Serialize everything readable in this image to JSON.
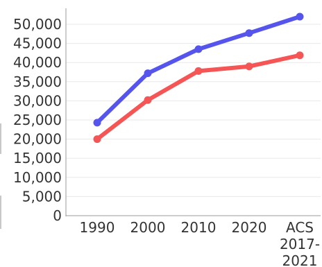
{
  "chart_data": {
    "type": "line",
    "categories": [
      "1990",
      "2000",
      "2010",
      "2020",
      "ACS 2017-2021"
    ],
    "category_lines": [
      [
        "1990"
      ],
      [
        "2000"
      ],
      [
        "2010"
      ],
      [
        "2020"
      ],
      [
        "ACS",
        "2017-",
        "2021"
      ]
    ],
    "series": [
      {
        "values": [
          24300,
          37200,
          43500,
          47700,
          52000
        ],
        "color": "#5555ee"
      },
      {
        "values": [
          20000,
          30200,
          37800,
          39000,
          41900
        ],
        "color": "#f55555"
      }
    ],
    "ylim": [
      0,
      50000
    ],
    "yticks": [
      0,
      5000,
      10000,
      15000,
      20000,
      25000,
      30000,
      35000,
      40000,
      45000,
      50000
    ],
    "ytick_labels": [
      "0",
      "5,000",
      "10,000",
      "15,000",
      "20,000",
      "25,000",
      "30,000",
      "35,000",
      "40,000",
      "45,000",
      "50,000"
    ],
    "title": "",
    "xlabel": "",
    "ylabel": "",
    "grid": true,
    "legend": "none"
  }
}
